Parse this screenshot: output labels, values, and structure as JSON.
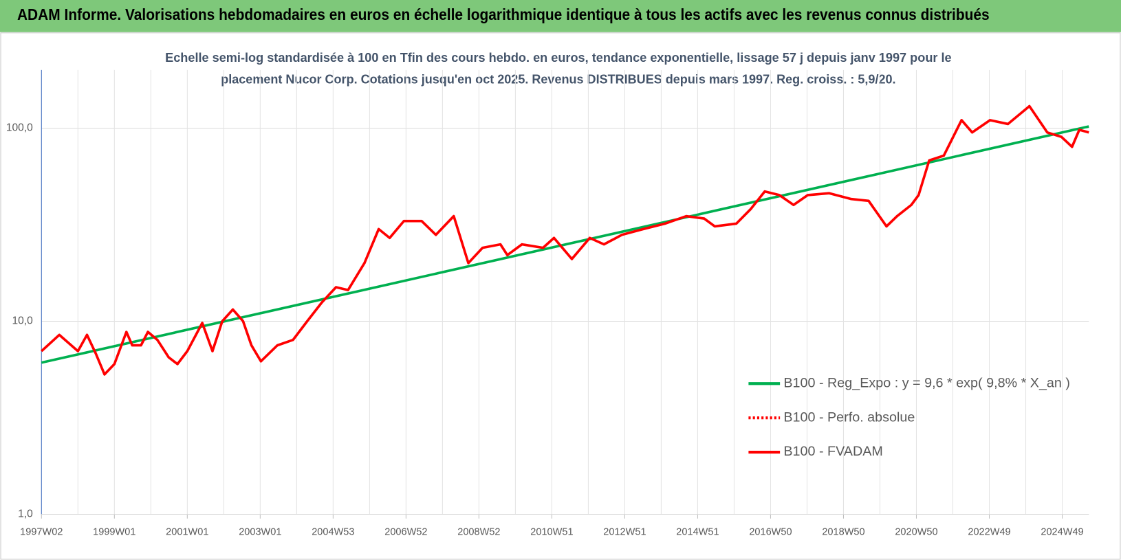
{
  "chart_data": {
    "type": "line",
    "title": "ADAM Informe. Valorisations hebdomadaires en euros en échelle logarithmique identique à tous les actifs avec les revenus connus distribués",
    "subtitle": [
      "Echelle semi-log standardisée à 100 en Tfin des cours hebdo. en euros, tendance exponentielle, lissage 57 j depuis janv 1997 pour le",
      "placement Nucor Corp. Cotations jusqu'en oct 2025. Revenus DISTRIBUES depuis mars 1997. Reg. croiss. : 5,9/20."
    ],
    "log_y": true,
    "grid": true,
    "legend": "lower right",
    "xlim": [
      1997,
      2025.73
    ],
    "xticks": [
      {
        "value": 1997,
        "label": "1997W02"
      },
      {
        "value": 1999,
        "label": "1999W01"
      },
      {
        "value": 2001,
        "label": "2001W01"
      },
      {
        "value": 2003,
        "label": "2003W01"
      },
      {
        "value": 2005,
        "label": "2004W53"
      },
      {
        "value": 2007,
        "label": "2006W52"
      },
      {
        "value": 2009,
        "label": "2008W52"
      },
      {
        "value": 2011,
        "label": "2010W51"
      },
      {
        "value": 2013,
        "label": "2012W51"
      },
      {
        "value": 2015,
        "label": "2014W51"
      },
      {
        "value": 2017,
        "label": "2016W50"
      },
      {
        "value": 2019,
        "label": "2018W50"
      },
      {
        "value": 2021,
        "label": "2020W50"
      },
      {
        "value": 2023,
        "label": "2022W49"
      },
      {
        "value": 2025,
        "label": "2024W49"
      }
    ],
    "ylim": [
      1,
      200
    ],
    "yticks": [
      {
        "value": 1,
        "label": "1,0"
      },
      {
        "value": 10,
        "label": "10,0"
      },
      {
        "value": 100,
        "label": "100,0"
      }
    ],
    "x": [
      1997.0,
      1997.49,
      1998.0,
      1998.25,
      1998.49,
      1998.73,
      1999.0,
      1999.33,
      1999.49,
      1999.73,
      1999.92,
      2000.18,
      2000.49,
      2000.73,
      2001.0,
      2001.41,
      2001.69,
      2001.96,
      2002.25,
      2002.53,
      2002.76,
      2003.02,
      2003.47,
      2003.9,
      2004.29,
      2004.69,
      2005.08,
      2005.41,
      2005.86,
      2006.25,
      2006.55,
      2006.94,
      2007.43,
      2007.82,
      2008.31,
      2008.71,
      2009.1,
      2009.59,
      2009.78,
      2010.18,
      2010.76,
      2011.06,
      2011.55,
      2012.04,
      2012.43,
      2012.92,
      2013.51,
      2014.1,
      2014.69,
      2015.18,
      2015.47,
      2016.06,
      2016.45,
      2016.84,
      2017.24,
      2017.63,
      2018.02,
      2018.61,
      2019.2,
      2019.69,
      2020.18,
      2020.47,
      2020.86,
      2021.06,
      2021.35,
      2021.75,
      2022.24,
      2022.53,
      2023.02,
      2023.51,
      2024.1,
      2024.59,
      2024.98,
      2025.27,
      2025.47,
      2025.73
    ],
    "series": [
      {
        "name": "B100 - Reg_Expo : y = 9,6 * exp( 9,8% *  X_an )",
        "color": "#00b050",
        "style": "solid",
        "x": [
          1997.0,
          2025.73
        ],
        "values": [
          6.1,
          102
        ]
      },
      {
        "name": "B100 - Perfo. absolue",
        "color": "#ff0000",
        "style": "dotted",
        "values": [
          7.0,
          8.5,
          7.0,
          8.5,
          6.8,
          5.3,
          6.0,
          8.8,
          7.5,
          7.5,
          8.8,
          8.0,
          6.5,
          6.0,
          7.0,
          9.8,
          7.0,
          10.0,
          11.5,
          10,
          7.5,
          6.2,
          7.5,
          8.0,
          10,
          12.5,
          15,
          14.5,
          20,
          30,
          27,
          33,
          33,
          28,
          35,
          20,
          24,
          25,
          22,
          25,
          24,
          27,
          21,
          27,
          25,
          28,
          30,
          32,
          35,
          34,
          31,
          32,
          38,
          47,
          45,
          40,
          45,
          46,
          43,
          42,
          31,
          35,
          40,
          45,
          68,
          72,
          110,
          95,
          110,
          105,
          130,
          95,
          90,
          80,
          98,
          95
        ]
      },
      {
        "name": "B100 - FVADAM",
        "color": "#ff0000",
        "style": "solid",
        "values": [
          7.0,
          8.5,
          7.0,
          8.5,
          6.8,
          5.3,
          6.0,
          8.8,
          7.5,
          7.5,
          8.8,
          8.0,
          6.5,
          6.0,
          7.0,
          9.8,
          7.0,
          10.0,
          11.5,
          10,
          7.5,
          6.2,
          7.5,
          8.0,
          10,
          12.5,
          15,
          14.5,
          20,
          30,
          27,
          33,
          33,
          28,
          35,
          20,
          24,
          25,
          22,
          25,
          24,
          27,
          21,
          27,
          25,
          28,
          30,
          32,
          35,
          34,
          31,
          32,
          38,
          47,
          45,
          40,
          45,
          46,
          43,
          42,
          31,
          35,
          40,
          45,
          68,
          72,
          110,
          95,
          110,
          105,
          130,
          95,
          90,
          80,
          98,
          95
        ]
      }
    ]
  }
}
